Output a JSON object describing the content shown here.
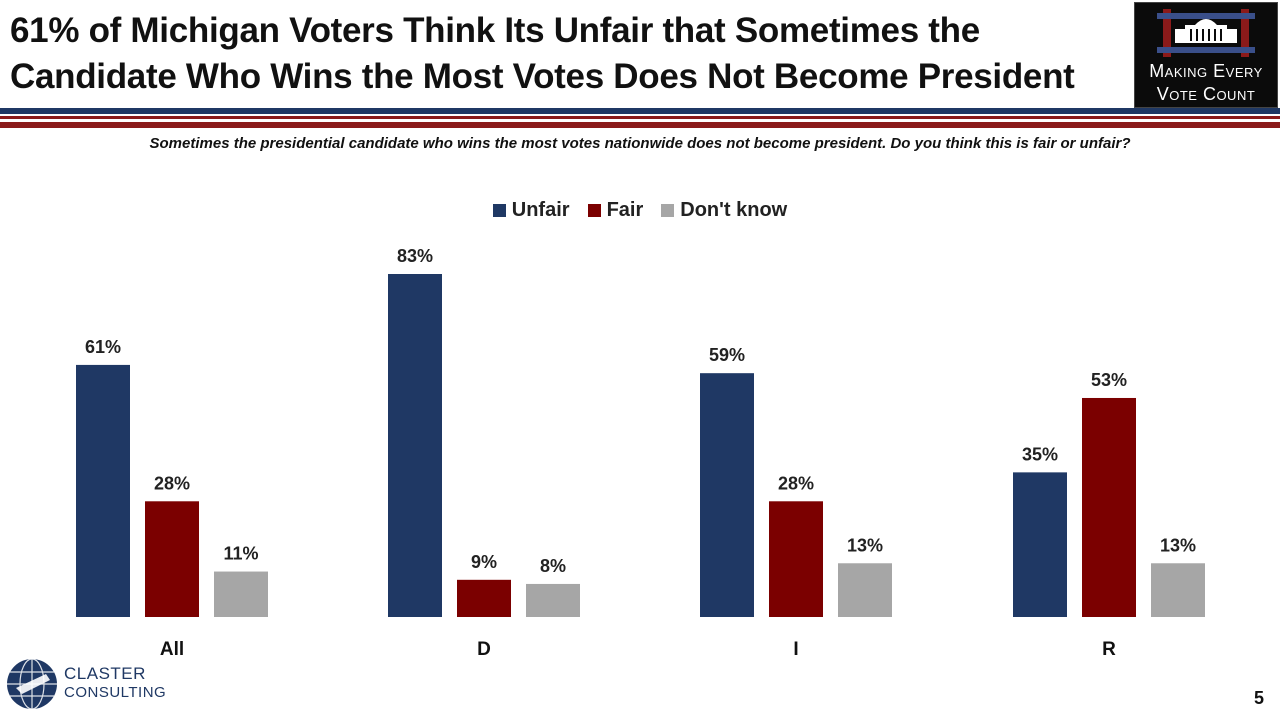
{
  "header": {
    "title_line1": "61% of Michigan Voters Think Its Unfair that Sometimes the",
    "title_line2": "Candidate Who Wins the Most Votes Does Not Become President",
    "logo_line1": "Making Every",
    "logo_line2": "Vote Count",
    "logo_icon": "white-house-icon"
  },
  "question": "Sometimes the presidential candidate who wins the most votes nationwide does not become president. Do you think this is fair or unfair?",
  "footer": {
    "brand_line1": "CLASTER",
    "brand_line2": "CONSULTING",
    "brand_icon": "globe-icon",
    "page_number": "5"
  },
  "colors": {
    "navy": "#1f3864",
    "maroon": "#7b0000",
    "gray": "#a6a6a6",
    "rule_navy": "#1f3864",
    "rule_red": "#8b1a1a"
  },
  "chart_data": {
    "type": "bar",
    "categories": [
      "All",
      "D",
      "I",
      "R"
    ],
    "series": [
      {
        "name": "Unfair",
        "values": [
          61,
          83,
          59,
          35
        ],
        "color": "#1f3864"
      },
      {
        "name": "Fair",
        "values": [
          28,
          9,
          28,
          53
        ],
        "color": "#7b0000"
      },
      {
        "name": "Don't know",
        "values": [
          11,
          8,
          13,
          13
        ],
        "color": "#a6a6a6"
      }
    ],
    "value_suffix": "%",
    "ylim": [
      0,
      100
    ],
    "grid": false,
    "legend_position": "top-center"
  }
}
